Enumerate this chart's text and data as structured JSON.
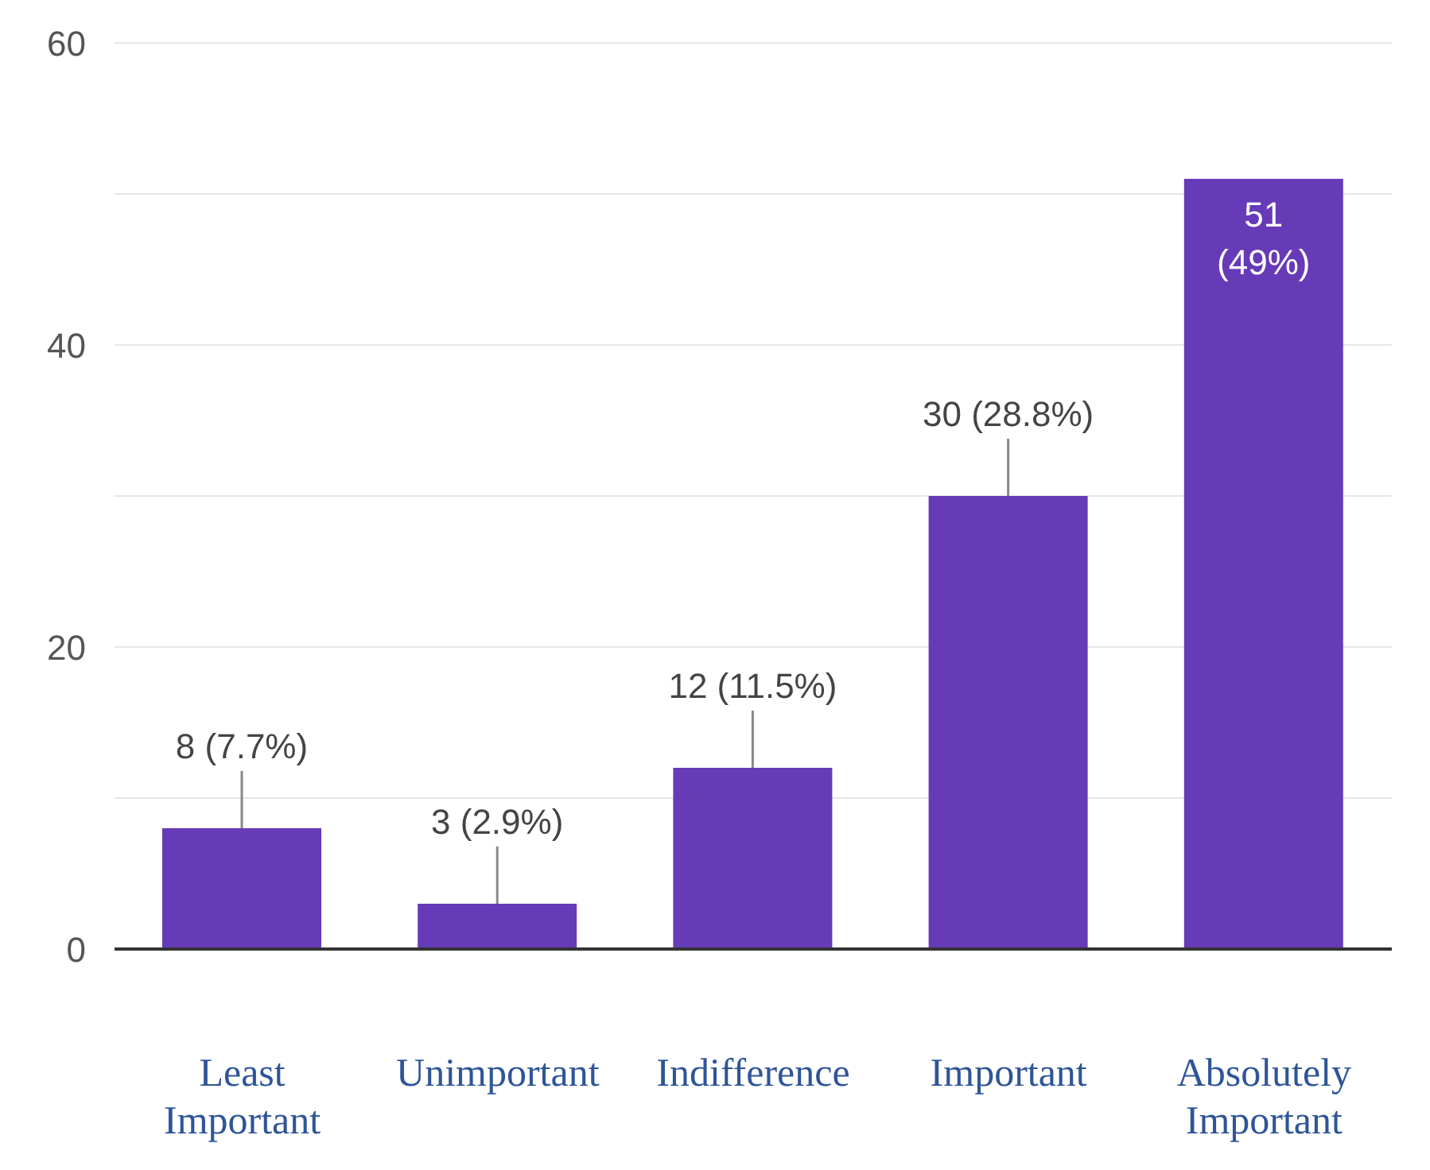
{
  "chart_data": {
    "type": "bar",
    "categories": [
      "Least Important",
      "Unimportant",
      "Indifference",
      "Important",
      "Absolutely Important"
    ],
    "values": [
      8,
      3,
      12,
      30,
      51
    ],
    "color": "#673ab7",
    "value_labels": [
      "8 (7.7%)",
      "3 (2.9%)",
      "12 (11.5%)",
      "30 (28.8%)",
      "51 (49%)"
    ],
    "ylim": [
      0,
      60
    ],
    "yticks": [
      0,
      {
        "value": 10,
        "label": null
      },
      20,
      {
        "value": 30,
        "label": null
      },
      40,
      {
        "value": 50,
        "label": null
      },
      60
    ],
    "grid": "y"
  }
}
